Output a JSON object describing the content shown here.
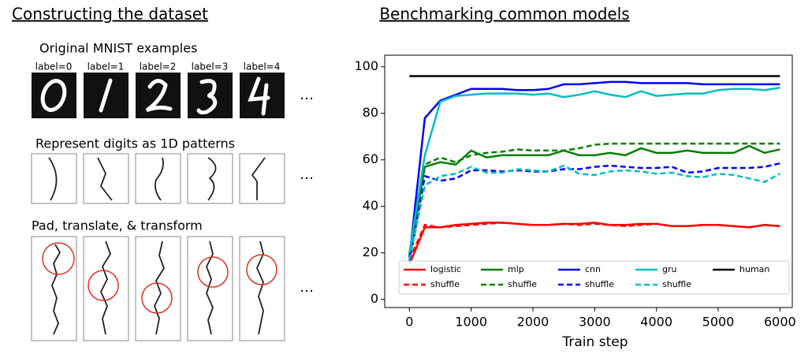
{
  "left_panel": {
    "title": "Constructing the dataset",
    "step1": "Original MNIST examples",
    "labels": [
      "label=0",
      "label=1",
      "label=2",
      "label=3",
      "label=4"
    ],
    "step2": "Represent digits as 1D patterns",
    "step3": "Pad, translate, & transform",
    "ellipsis": "…"
  },
  "chart_data": {
    "type": "line",
    "title": "Benchmarking common models",
    "x_label": "Train step",
    "x": [
      0,
      250,
      500,
      750,
      1000,
      1250,
      1500,
      1750,
      2000,
      2250,
      2500,
      2750,
      3000,
      3250,
      3500,
      3750,
      4000,
      4250,
      4500,
      4750,
      5000,
      5250,
      5500,
      5750,
      6000
    ],
    "series": [
      {
        "name": "logistic",
        "color": "#ff0000",
        "dashed": false,
        "values": [
          15,
          31,
          31,
          32,
          32.5,
          33,
          33,
          32.5,
          32,
          32,
          32.5,
          32.5,
          33,
          32,
          32,
          32.5,
          32.5,
          31.5,
          31.5,
          32,
          32,
          31.5,
          31,
          32,
          31.5
        ]
      },
      {
        "name": "shuffle",
        "color": "#ff0000",
        "dashed": true,
        "values": [
          17,
          32,
          31,
          31.5,
          32,
          32.5,
          33,
          32.5,
          32,
          32,
          32.5,
          32,
          32.5,
          32,
          31.5,
          32,
          32.5,
          31.5,
          31.5,
          32,
          32,
          31.5,
          31,
          32,
          31.5
        ]
      },
      {
        "name": "mlp",
        "color": "#008000",
        "dashed": false,
        "values": [
          19,
          57,
          59,
          58,
          64,
          61,
          62,
          62,
          62,
          62,
          64,
          62,
          62,
          63,
          62,
          65,
          63,
          63,
          64,
          63,
          63,
          63,
          66,
          63,
          64.5
        ]
      },
      {
        "name": "shuffle",
        "color": "#008000",
        "dashed": true,
        "values": [
          18,
          58,
          61,
          59,
          62,
          63,
          63.5,
          64.5,
          64,
          64,
          64,
          65,
          66.5,
          67,
          67,
          67,
          67,
          67,
          67,
          67,
          67,
          67,
          67,
          67,
          67
        ]
      },
      {
        "name": "cnn",
        "color": "#0000ff",
        "dashed": false,
        "values": [
          18,
          78,
          85.5,
          88,
          90.5,
          90.5,
          90.5,
          90,
          90,
          90.5,
          92.5,
          92.5,
          93,
          93.5,
          93.5,
          93,
          93,
          93,
          93,
          92.5,
          92.5,
          92.5,
          92.5,
          92.5,
          92.5
        ]
      },
      {
        "name": "shuffle",
        "color": "#0000ff",
        "dashed": true,
        "values": [
          16,
          53,
          51,
          52,
          55.5,
          55.5,
          55,
          55.5,
          55,
          55,
          56,
          56,
          57,
          57.5,
          57,
          56.5,
          56.5,
          57,
          54.5,
          55,
          56.5,
          56.5,
          56.5,
          57,
          58.5
        ]
      },
      {
        "name": "gru",
        "color": "#00bfbf",
        "dashed": false,
        "values": [
          20,
          62,
          85,
          87.5,
          88,
          88.5,
          88.5,
          88.5,
          88,
          88.5,
          87,
          88,
          89.5,
          88,
          87,
          89.5,
          87.5,
          88,
          88.5,
          88.5,
          90,
          90.5,
          90.5,
          90,
          91
        ]
      },
      {
        "name": "shuffle",
        "color": "#00bfbf",
        "dashed": true,
        "values": [
          17,
          49,
          53,
          54,
          57,
          54.5,
          54.5,
          56,
          55.5,
          55,
          57.5,
          54,
          53.5,
          55,
          55.5,
          55,
          54,
          54.5,
          53,
          52.5,
          54,
          53.5,
          52,
          50.5,
          54
        ]
      },
      {
        "name": "human",
        "color": "#000000",
        "dashed": false,
        "values": [
          96,
          96,
          96,
          96,
          96,
          96,
          96,
          96,
          96,
          96,
          96,
          96,
          96,
          96,
          96,
          96,
          96,
          96,
          96,
          96,
          96,
          96,
          96,
          96,
          96
        ]
      }
    ],
    "xlim": [
      -400,
      6200
    ],
    "xticks": [
      0,
      1000,
      2000,
      3000,
      4000,
      5000,
      6000
    ],
    "ylim": [
      -3.5,
      105
    ],
    "yticks": [
      0,
      20,
      40,
      60,
      80,
      100
    ],
    "legend": "lower center",
    "grid": false
  }
}
